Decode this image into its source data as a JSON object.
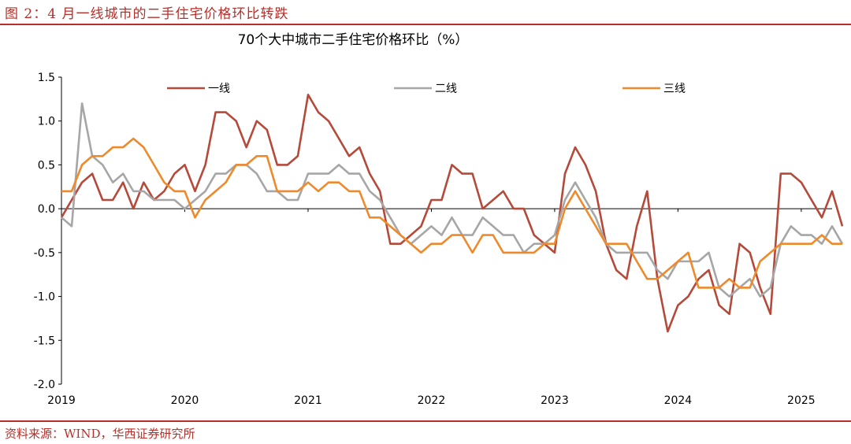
{
  "figure": {
    "title": "图 2：4 月一线城市的二手住宅价格环比转跌",
    "source": "资料来源：WIND，华西证券研究所"
  },
  "colors": {
    "accent": "#b5302a",
    "series": [
      "#b5493a",
      "#a6a6a6",
      "#ee8a2c"
    ]
  },
  "chart_data": {
    "type": "line",
    "title": "70个大中城市二手住宅价格环比（%）",
    "xlabel": "",
    "ylabel": "",
    "ylim": [
      -2.0,
      1.5
    ],
    "y_ticks": [
      "1.5",
      "1.0",
      "0.5",
      "0.0",
      "-0.5",
      "-1.0",
      "-1.5",
      "-2.0"
    ],
    "x_ticks": [
      "2019",
      "2020",
      "2021",
      "2022",
      "2023",
      "2024",
      "2025"
    ],
    "x_start": "2019-01",
    "x_end": "2025-04",
    "grid": false,
    "legend_position": "top",
    "series": [
      {
        "name": "一线",
        "values": [
          -0.1,
          0.1,
          0.3,
          0.4,
          0.1,
          0.1,
          0.3,
          0.0,
          0.3,
          0.1,
          0.2,
          0.4,
          0.5,
          0.2,
          0.5,
          1.1,
          1.1,
          1.0,
          0.7,
          1.0,
          0.9,
          0.5,
          0.5,
          0.6,
          1.3,
          1.1,
          1.0,
          0.8,
          0.6,
          0.7,
          0.4,
          0.2,
          -0.4,
          -0.4,
          -0.3,
          -0.2,
          0.1,
          0.1,
          0.5,
          0.4,
          0.4,
          0.0,
          0.1,
          0.2,
          0.0,
          0.0,
          -0.3,
          -0.4,
          -0.5,
          0.4,
          0.7,
          0.5,
          0.2,
          -0.4,
          -0.7,
          -0.8,
          -0.2,
          0.2,
          -0.8,
          -1.4,
          -1.1,
          -1.0,
          -0.8,
          -0.7,
          -1.1,
          -1.2,
          -0.4,
          -0.5,
          -0.9,
          -1.2,
          0.4,
          0.4,
          0.3,
          0.1,
          -0.1,
          0.2,
          -0.2
        ]
      },
      {
        "name": "二线",
        "values": [
          -0.1,
          -0.2,
          1.2,
          0.6,
          0.5,
          0.3,
          0.4,
          0.2,
          0.2,
          0.1,
          0.1,
          0.1,
          0.0,
          0.1,
          0.2,
          0.4,
          0.4,
          0.5,
          0.5,
          0.4,
          0.2,
          0.2,
          0.1,
          0.1,
          0.4,
          0.4,
          0.4,
          0.5,
          0.4,
          0.4,
          0.2,
          0.1,
          -0.1,
          -0.3,
          -0.4,
          -0.3,
          -0.2,
          -0.3,
          -0.1,
          -0.3,
          -0.3,
          -0.1,
          -0.2,
          -0.3,
          -0.3,
          -0.5,
          -0.4,
          -0.4,
          -0.3,
          0.1,
          0.3,
          0.1,
          -0.1,
          -0.4,
          -0.5,
          -0.5,
          -0.5,
          -0.5,
          -0.7,
          -0.8,
          -0.6,
          -0.6,
          -0.6,
          -0.5,
          -0.9,
          -1.0,
          -0.9,
          -0.8,
          -1.0,
          -0.9,
          -0.4,
          -0.2,
          -0.3,
          -0.3,
          -0.4,
          -0.2,
          -0.4
        ]
      },
      {
        "name": "三线",
        "values": [
          0.2,
          0.2,
          0.5,
          0.6,
          0.6,
          0.7,
          0.7,
          0.8,
          0.7,
          0.5,
          0.3,
          0.2,
          0.2,
          -0.1,
          0.1,
          0.2,
          0.3,
          0.5,
          0.5,
          0.6,
          0.6,
          0.2,
          0.2,
          0.2,
          0.3,
          0.2,
          0.3,
          0.3,
          0.2,
          0.2,
          -0.1,
          -0.1,
          -0.2,
          -0.3,
          -0.4,
          -0.5,
          -0.4,
          -0.4,
          -0.3,
          -0.3,
          -0.5,
          -0.3,
          -0.3,
          -0.5,
          -0.5,
          -0.5,
          -0.5,
          -0.4,
          -0.4,
          0.0,
          0.2,
          0.0,
          -0.2,
          -0.4,
          -0.4,
          -0.4,
          -0.6,
          -0.8,
          -0.8,
          -0.7,
          -0.6,
          -0.5,
          -0.9,
          -0.9,
          -0.9,
          -0.8,
          -0.9,
          -0.9,
          -0.6,
          -0.5,
          -0.4,
          -0.4,
          -0.4,
          -0.4,
          -0.3,
          -0.4,
          -0.4
        ]
      }
    ]
  }
}
